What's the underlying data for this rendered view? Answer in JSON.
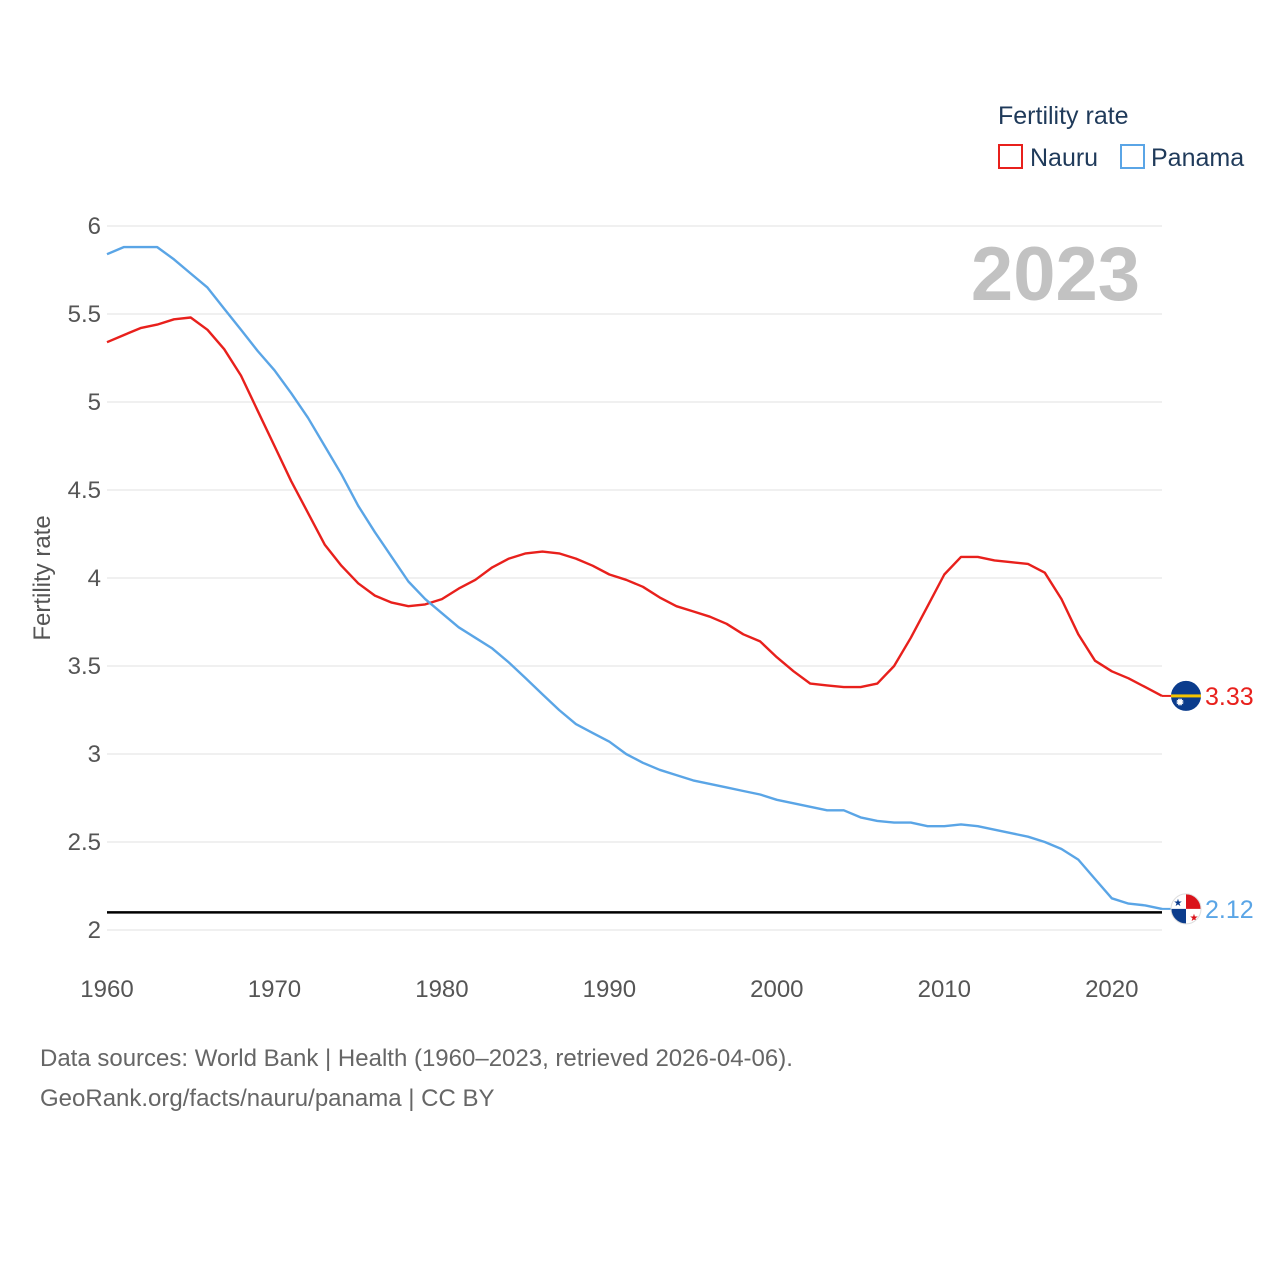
{
  "chart_data": {
    "type": "line",
    "year_label": "2023",
    "legend_title": "Fertility rate",
    "ylabel": "Fertility rate",
    "xlabel": "",
    "xlim": [
      1960,
      2023
    ],
    "ylim": [
      2,
      6
    ],
    "x_ticks": [
      "1960",
      "1970",
      "1980",
      "1990",
      "2000",
      "2010",
      "2020"
    ],
    "y_ticks": [
      "2",
      "2.5",
      "3",
      "3.5",
      "4",
      "4.5",
      "5",
      "5.5",
      "6"
    ],
    "reference_line": 2.1,
    "x": [
      1960,
      1961,
      1962,
      1963,
      1964,
      1965,
      1966,
      1967,
      1968,
      1969,
      1970,
      1971,
      1972,
      1973,
      1974,
      1975,
      1976,
      1977,
      1978,
      1979,
      1980,
      1981,
      1982,
      1983,
      1984,
      1985,
      1986,
      1987,
      1988,
      1989,
      1990,
      1991,
      1992,
      1993,
      1994,
      1995,
      1996,
      1997,
      1998,
      1999,
      2000,
      2001,
      2002,
      2003,
      2004,
      2005,
      2006,
      2007,
      2008,
      2009,
      2010,
      2011,
      2012,
      2013,
      2014,
      2015,
      2016,
      2017,
      2018,
      2019,
      2020,
      2021,
      2022,
      2023
    ],
    "series": [
      {
        "name": "Nauru",
        "color": "#e8201c",
        "end_label": "3.33",
        "flag": "nauru-flag-icon",
        "values": [
          5.34,
          5.38,
          5.42,
          5.44,
          5.47,
          5.48,
          5.41,
          5.3,
          5.15,
          4.95,
          4.75,
          4.55,
          4.37,
          4.19,
          4.07,
          3.97,
          3.9,
          3.86,
          3.84,
          3.85,
          3.88,
          3.94,
          3.99,
          4.06,
          4.11,
          4.14,
          4.15,
          4.14,
          4.11,
          4.07,
          4.02,
          3.99,
          3.95,
          3.89,
          3.84,
          3.81,
          3.78,
          3.74,
          3.68,
          3.64,
          3.55,
          3.47,
          3.4,
          3.39,
          3.38,
          3.38,
          3.4,
          3.5,
          3.66,
          3.84,
          4.02,
          4.12,
          4.12,
          4.1,
          4.09,
          4.08,
          4.03,
          3.88,
          3.68,
          3.53,
          3.47,
          3.43,
          3.38,
          3.33
        ]
      },
      {
        "name": "Panama",
        "color": "#5aa5e6",
        "end_label": "2.12",
        "flag": "panama-flag-icon",
        "values": [
          5.84,
          5.88,
          5.88,
          5.88,
          5.81,
          5.73,
          5.65,
          5.53,
          5.41,
          5.29,
          5.18,
          5.05,
          4.91,
          4.75,
          4.59,
          4.41,
          4.26,
          4.12,
          3.98,
          3.88,
          3.8,
          3.72,
          3.66,
          3.6,
          3.52,
          3.43,
          3.34,
          3.25,
          3.17,
          3.12,
          3.07,
          3.0,
          2.95,
          2.91,
          2.88,
          2.85,
          2.83,
          2.81,
          2.79,
          2.77,
          2.74,
          2.72,
          2.7,
          2.68,
          2.68,
          2.64,
          2.62,
          2.61,
          2.61,
          2.59,
          2.59,
          2.6,
          2.59,
          2.57,
          2.55,
          2.53,
          2.5,
          2.46,
          2.4,
          2.29,
          2.18,
          2.15,
          2.14,
          2.12
        ]
      }
    ]
  },
  "footer": {
    "line1": "Data sources: World Bank | Health (1960–2023, retrieved 2026-04-06).",
    "line2": "GeoRank.org/facts/nauru/panama | CC BY"
  }
}
